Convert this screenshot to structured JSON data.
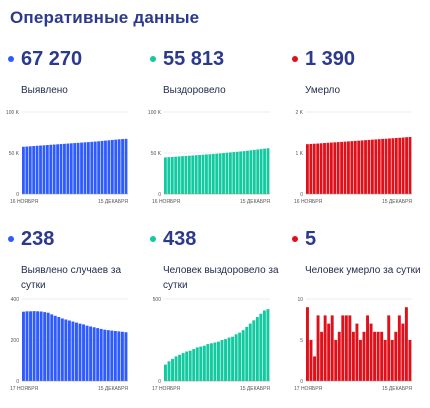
{
  "title": "Оперативные данные",
  "panels": [
    {
      "id": "detected-total",
      "value": "67 270",
      "label": "Выявлено",
      "color": "#2e5bff"
    },
    {
      "id": "recovered-total",
      "value": "55 813",
      "label": "Выздоровело",
      "color": "#12c9a0"
    },
    {
      "id": "deaths-total",
      "value": "1 390",
      "label": "Умерло",
      "color": "#e0101a"
    },
    {
      "id": "detected-daily",
      "value": "238",
      "label": "Выявлено случаев за сутки",
      "color": "#2e5bff"
    },
    {
      "id": "recovered-daily",
      "value": "438",
      "label": "Человек выздоровело за сутки",
      "color": "#12c9a0"
    },
    {
      "id": "deaths-daily",
      "value": "5",
      "label": "Человек умерло за сутки",
      "color": "#e0101a"
    }
  ],
  "chart_data": [
    {
      "type": "bar",
      "panel": "detected-total",
      "color": "#2e5bff",
      "ylim": [
        0,
        100000
      ],
      "yticks": [
        "0",
        "50 K",
        "100 K"
      ],
      "yticks_values": [
        0,
        50000,
        100000
      ],
      "x_start_label": "16 НОЯБРЯ",
      "x_end_label": "15 ДЕКАБРЯ",
      "values": [
        57600,
        57900,
        58200,
        58500,
        58800,
        59100,
        59400,
        59700,
        60000,
        60300,
        60600,
        60900,
        61200,
        61500,
        61800,
        62100,
        62400,
        62700,
        63000,
        63300,
        63600,
        63900,
        64300,
        64700,
        65100,
        65500,
        65900,
        66300,
        66700,
        67000,
        67270
      ]
    },
    {
      "type": "bar",
      "panel": "recovered-total",
      "color": "#12c9a0",
      "ylim": [
        0,
        100000
      ],
      "yticks": [
        "0",
        "50 K",
        "100 K"
      ],
      "yticks_values": [
        0,
        50000,
        100000
      ],
      "x_start_label": "16 НОЯБРЯ",
      "x_end_label": "15 ДЕКАБРЯ",
      "values": [
        44600,
        44900,
        45200,
        45500,
        45800,
        46100,
        46400,
        46700,
        47000,
        47300,
        47600,
        47900,
        48200,
        48500,
        48800,
        49100,
        49500,
        49900,
        50300,
        50700,
        51100,
        51500,
        51900,
        52300,
        52800,
        53300,
        53800,
        54300,
        54800,
        55300,
        55813
      ]
    },
    {
      "type": "bar",
      "panel": "deaths-total",
      "color": "#e0101a",
      "ylim": [
        0,
        2000
      ],
      "yticks": [
        "0",
        "1 K",
        "2 K"
      ],
      "yticks_values": [
        0,
        1000,
        2000
      ],
      "x_start_label": "16 НОЯБРЯ",
      "x_end_label": "15 ДЕКАБРЯ",
      "values": [
        1215,
        1220,
        1226,
        1231,
        1237,
        1243,
        1249,
        1254,
        1260,
        1265,
        1271,
        1277,
        1283,
        1289,
        1295,
        1301,
        1307,
        1313,
        1319,
        1325,
        1331,
        1337,
        1343,
        1348,
        1354,
        1360,
        1366,
        1372,
        1378,
        1385,
        1390
      ]
    },
    {
      "type": "bar",
      "panel": "detected-daily",
      "color": "#2e5bff",
      "ylim": [
        0,
        400
      ],
      "yticks": [
        "0",
        "200",
        "400"
      ],
      "yticks_values": [
        0,
        200,
        400
      ],
      "x_start_label": "17 НОЯБРЯ",
      "x_end_label": "15 ДЕКАБРЯ",
      "values": [
        338,
        340,
        340,
        341,
        340,
        339,
        336,
        333,
        325,
        318,
        312,
        305,
        300,
        295,
        290,
        285,
        280,
        276,
        270,
        266,
        262,
        258,
        254,
        250,
        248,
        246,
        244,
        242,
        240,
        238
      ]
    },
    {
      "type": "bar",
      "panel": "recovered-daily",
      "color": "#12c9a0",
      "ylim": [
        0,
        500
      ],
      "yticks": [
        "0",
        "500"
      ],
      "yticks_values": [
        0,
        500
      ],
      "x_start_label": "17 НОЯБРЯ",
      "x_end_label": "15 ДЕКАБРЯ",
      "values": [
        100,
        120,
        135,
        150,
        160,
        170,
        180,
        185,
        195,
        205,
        210,
        215,
        225,
        230,
        235,
        240,
        250,
        255,
        265,
        270,
        285,
        295,
        310,
        330,
        350,
        370,
        390,
        410,
        430,
        438
      ]
    },
    {
      "type": "bar",
      "panel": "deaths-daily",
      "color": "#e0101a",
      "ylim": [
        0,
        10
      ],
      "yticks": [
        "0",
        "5",
        "10"
      ],
      "yticks_values": [
        0,
        5,
        10
      ],
      "x_start_label": "17 НОЯБРЯ",
      "x_end_label": "15 ДЕКАБРЯ",
      "values": [
        9,
        5,
        3,
        8,
        6,
        8,
        7,
        8,
        5,
        6,
        8,
        8,
        8,
        6,
        7,
        5,
        6,
        8,
        7,
        6,
        6,
        6,
        5,
        8,
        5,
        6,
        8,
        7,
        9,
        5
      ]
    }
  ]
}
